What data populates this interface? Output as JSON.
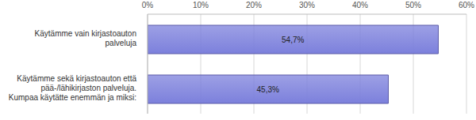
{
  "chart_data": {
    "type": "bar",
    "orientation": "horizontal",
    "categories": [
      "Käytämme vain kirjastoauton palveluja",
      "Käytämme sekä kirjastoauton että pää-/lähikirjaston palveluja. Kumpaa käytätte enemmän ja miksi:"
    ],
    "values": [
      54.7,
      45.3
    ],
    "value_labels": [
      "54,7%",
      "45,3%"
    ],
    "data_labels": true,
    "color": "#7c80dc",
    "xlim": [
      0,
      60
    ],
    "xticks": [
      {
        "value": 0,
        "label": "0%"
      },
      {
        "value": 10,
        "label": "10%"
      },
      {
        "value": 20,
        "label": "20%"
      },
      {
        "value": 30,
        "label": "30%"
      },
      {
        "value": 40,
        "label": "40%"
      },
      {
        "value": 50,
        "label": "50%"
      },
      {
        "value": 60,
        "label": "60%"
      }
    ],
    "grid": true
  }
}
